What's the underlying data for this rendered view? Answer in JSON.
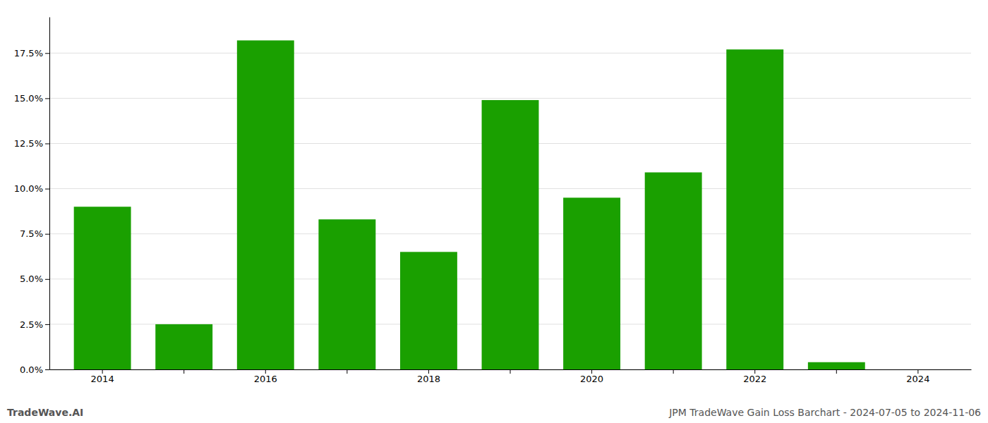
{
  "chart_data": {
    "type": "bar",
    "categories": [
      "2014",
      null,
      "2016",
      null,
      "2018",
      null,
      "2020",
      null,
      "2022",
      null,
      "2024"
    ],
    "values": [
      0.09,
      0.025,
      0.182,
      0.083,
      0.065,
      0.149,
      0.095,
      0.109,
      0.177,
      0.004,
      0.0
    ],
    "color": "#1aA000",
    "ylim": [
      0,
      0.195
    ],
    "yticks": [
      {
        "value": 0.0,
        "label": "0.0%"
      },
      {
        "value": 0.025,
        "label": "2.5%"
      },
      {
        "value": 0.05,
        "label": "5.0%"
      },
      {
        "value": 0.075,
        "label": "7.5%"
      },
      {
        "value": 0.1,
        "label": "10.0%"
      },
      {
        "value": 0.125,
        "label": "12.5%"
      },
      {
        "value": 0.15,
        "label": "15.0%"
      },
      {
        "value": 0.175,
        "label": "17.5%"
      }
    ],
    "grid": true,
    "annotations": [
      "TradeWave.AI",
      "JPM TradeWave Gain Loss Barchart - 2024-07-05 to 2024-11-06"
    ]
  }
}
